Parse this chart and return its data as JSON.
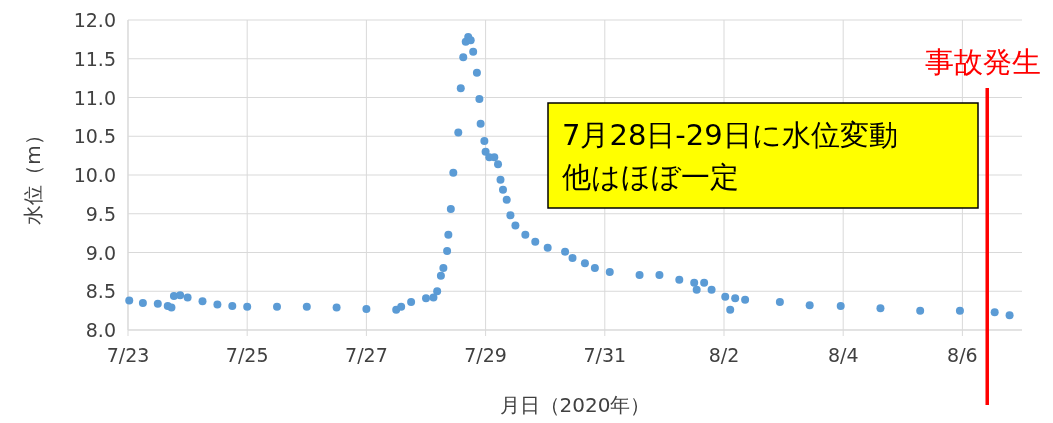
{
  "chart_data": {
    "type": "scatter",
    "xlabel": "月日（2020年）",
    "ylabel": "水位（m）",
    "marker": "circle",
    "grid": true,
    "xlim": [
      "2020-07-23",
      "2020-08-07"
    ],
    "ylim": [
      8.0,
      12.0
    ],
    "xticks": [
      {
        "value": "2020-07-23",
        "label": "7/23"
      },
      {
        "value": "2020-07-25",
        "label": "7/25"
      },
      {
        "value": "2020-07-27",
        "label": "7/27"
      },
      {
        "value": "2020-07-29",
        "label": "7/29"
      },
      {
        "value": "2020-07-31",
        "label": "7/31"
      },
      {
        "value": "2020-08-02",
        "label": "8/2"
      },
      {
        "value": "2020-08-04",
        "label": "8/4"
      },
      {
        "value": "2020-08-06",
        "label": "8/6"
      }
    ],
    "yticks": [
      {
        "value": 8.0,
        "label": "8.0"
      },
      {
        "value": 8.5,
        "label": "8.5"
      },
      {
        "value": 9.0,
        "label": "9.0"
      },
      {
        "value": 9.5,
        "label": "9.5"
      },
      {
        "value": 10.0,
        "label": "10.0"
      },
      {
        "value": 10.5,
        "label": "10.5"
      },
      {
        "value": 11.0,
        "label": "11.0"
      },
      {
        "value": 11.5,
        "label": "11.5"
      },
      {
        "value": 12.0,
        "label": "12.0"
      }
    ],
    "series": [
      {
        "color": "#5b9bd5",
        "x": [
          "2020-07-23T00:30",
          "2020-07-23T06:00",
          "2020-07-23T12:00",
          "2020-07-23T16:00",
          "2020-07-23T17:30",
          "2020-07-23T18:30",
          "2020-07-23T21:00",
          "2020-07-24T00:00",
          "2020-07-24T06:00",
          "2020-07-24T12:00",
          "2020-07-24T18:00",
          "2020-07-25T00:00",
          "2020-07-25T12:00",
          "2020-07-26T00:00",
          "2020-07-26T12:00",
          "2020-07-27T00:00",
          "2020-07-27T12:00",
          "2020-07-27T14:00",
          "2020-07-27T18:00",
          "2020-07-28T00:00",
          "2020-07-28T03:00",
          "2020-07-28T04:30",
          "2020-07-28T06:00",
          "2020-07-28T07:00",
          "2020-07-28T08:30",
          "2020-07-28T09:00",
          "2020-07-28T10:00",
          "2020-07-28T11:00",
          "2020-07-28T13:00",
          "2020-07-28T14:00",
          "2020-07-28T15:00",
          "2020-07-28T16:00",
          "2020-07-28T17:00",
          "2020-07-28T18:00",
          "2020-07-28T19:00",
          "2020-07-28T20:30",
          "2020-07-28T21:30",
          "2020-07-28T22:00",
          "2020-07-28T23:30",
          "2020-07-29T00:00",
          "2020-07-29T01:30",
          "2020-07-29T03:30",
          "2020-07-29T05:00",
          "2020-07-29T06:00",
          "2020-07-29T07:00",
          "2020-07-29T08:30",
          "2020-07-29T10:00",
          "2020-07-29T12:00",
          "2020-07-29T16:00",
          "2020-07-29T20:00",
          "2020-07-30T01:00",
          "2020-07-30T08:00",
          "2020-07-30T11:00",
          "2020-07-30T16:00",
          "2020-07-30T20:00",
          "2020-07-31T02:00",
          "2020-07-31T14:00",
          "2020-07-31T22:00",
          "2020-08-01T06:00",
          "2020-08-01T12:00",
          "2020-08-01T13:00",
          "2020-08-01T16:00",
          "2020-08-01T19:00",
          "2020-08-02T00:30",
          "2020-08-02T02:30",
          "2020-08-02T04:30",
          "2020-08-02T08:30",
          "2020-08-02T22:30",
          "2020-08-03T10:30",
          "2020-08-03T23:00",
          "2020-08-04T15:00",
          "2020-08-05T07:00",
          "2020-08-05T23:00",
          "2020-08-06T13:00",
          "2020-08-06T19:00"
        ],
        "values": [
          8.38,
          8.35,
          8.34,
          8.31,
          8.29,
          8.44,
          8.45,
          8.42,
          8.37,
          8.33,
          8.31,
          8.3,
          8.3,
          8.3,
          8.29,
          8.27,
          8.26,
          8.3,
          8.36,
          8.41,
          8.42,
          8.5,
          8.7,
          8.8,
          9.02,
          9.23,
          9.56,
          10.03,
          10.55,
          11.12,
          11.52,
          11.72,
          11.78,
          11.74,
          11.59,
          11.32,
          10.98,
          10.66,
          10.44,
          10.3,
          10.23,
          10.23,
          10.14,
          9.94,
          9.81,
          9.68,
          9.48,
          9.35,
          9.23,
          9.14,
          9.06,
          9.01,
          8.93,
          8.86,
          8.8,
          8.75,
          8.71,
          8.71,
          8.65,
          8.61,
          8.52,
          8.61,
          8.52,
          8.43,
          8.26,
          8.41,
          8.39,
          8.36,
          8.32,
          8.31,
          8.28,
          8.25,
          8.25,
          8.23,
          8.19
        ]
      }
    ],
    "ref_lines": [
      {
        "axis": "x",
        "value": "2020-08-06T10:00",
        "label": "事故発生",
        "color": "#ff0000"
      }
    ],
    "annotations": [
      "7月28日-29日に水位変動",
      "他はほぼ一定"
    ]
  }
}
